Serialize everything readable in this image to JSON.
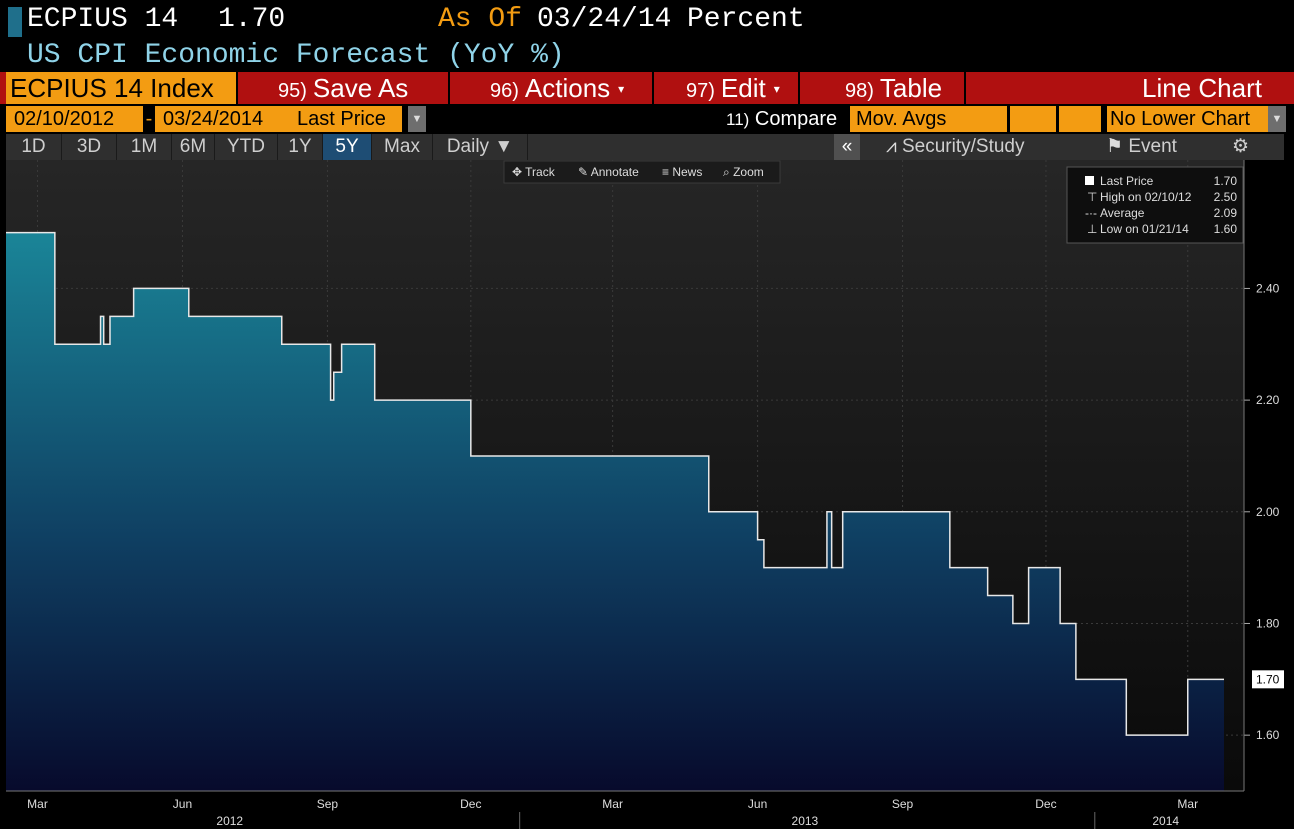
{
  "header": {
    "ticker": "ECPIUS 14",
    "last_value": "1.70",
    "as_of_label": "As Of",
    "as_of_date": "03/24/14",
    "unit": "Percent",
    "description": "US CPI Economic Forecast (YoY %)"
  },
  "toolbar": {
    "security": "ECPIUS 14 Index",
    "save_num": "95)",
    "save_label": "Save As",
    "actions_num": "96)",
    "actions_label": "Actions",
    "edit_num": "97)",
    "edit_label": "Edit",
    "table_num": "98)",
    "table_label": "Table",
    "chart_type": "Line Chart"
  },
  "daterow": {
    "start": "02/10/2012",
    "dash": "-",
    "end": "03/24/2014",
    "field": "Last Price",
    "compare_num": "11)",
    "compare_label": "Compare",
    "mov_avgs": "Mov. Avgs",
    "lower_chart": "No Lower Chart"
  },
  "tabs": [
    "1D",
    "3D",
    "1M",
    "6M",
    "YTD",
    "1Y",
    "5Y",
    "Max"
  ],
  "active_tab": "5Y",
  "frequency": "Daily",
  "right_tabs": {
    "collapse": "«",
    "security_study": "Security/Study",
    "event": "Event"
  },
  "chart_toolbar": [
    "Track",
    "Annotate",
    "News",
    "Zoom"
  ],
  "legend": {
    "rows": [
      {
        "label": "Last Price",
        "value": "1.70"
      },
      {
        "label": "High on 02/10/12",
        "value": "2.50"
      },
      {
        "label": "Average",
        "value": "2.09"
      },
      {
        "label": "Low on 01/21/14",
        "value": "1.60"
      }
    ]
  },
  "colors": {
    "accent_orange": "#f39c12",
    "toolbar_red": "#b01010",
    "line": "#e8e8e8",
    "area_top": "#1a7f92",
    "area_bottom": "#0a0a2a"
  },
  "chart_data": {
    "type": "area",
    "ylim": [
      1.5,
      2.63
    ],
    "yticks": [
      "1.60",
      "1.80",
      "2.00",
      "2.20",
      "2.40"
    ],
    "last_label": "1.70",
    "x_month_labels": [
      "Mar",
      "Jun",
      "Sep",
      "Dec",
      "Mar",
      "Jun",
      "Sep",
      "Dec",
      "Mar"
    ],
    "x_year_labels": [
      "2012",
      "2013",
      "2014"
    ],
    "x": [
      "2012-02-10",
      "2012-03-12",
      "2012-04-10",
      "2012-04-12",
      "2012-04-16",
      "2012-05-01",
      "2012-06-05",
      "2012-08-03",
      "2012-09-03",
      "2012-09-05",
      "2012-09-10",
      "2012-10-01",
      "2012-12-01",
      "2013-05-01",
      "2013-06-01",
      "2013-06-05",
      "2013-07-15",
      "2013-07-18",
      "2013-07-25",
      "2013-10-01",
      "2013-10-25",
      "2013-11-10",
      "2013-11-20",
      "2013-12-10",
      "2013-12-20",
      "2014-01-21",
      "2014-03-01",
      "2014-03-05"
    ],
    "series": [
      {
        "values": [
          2.5,
          2.3,
          2.35,
          2.3,
          2.35,
          2.4,
          2.35,
          2.3,
          2.2,
          2.25,
          2.3,
          2.2,
          2.1,
          2.0,
          1.95,
          1.9,
          2.0,
          1.9,
          2.0,
          1.9,
          1.85,
          1.8,
          1.9,
          1.8,
          1.7,
          1.6,
          1.7,
          1.7
        ]
      }
    ]
  }
}
